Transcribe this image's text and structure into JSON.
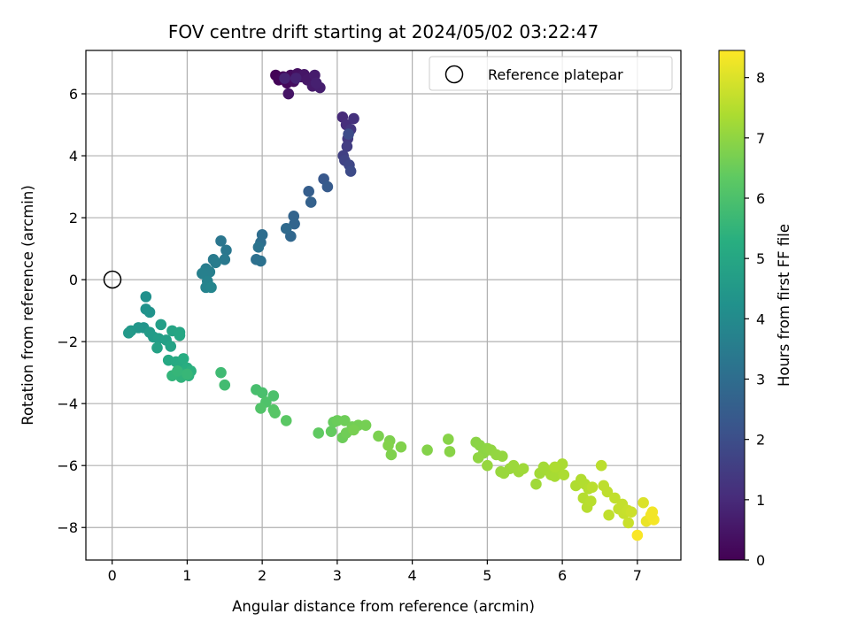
{
  "chart_data": {
    "type": "scatter",
    "title": "FOV centre drift starting at 2024/05/02 03:22:47",
    "xlabel": "Angular distance from reference (arcmin)",
    "ylabel": "Rotation from reference (arcmin)",
    "xlim": [
      -0.35,
      7.58
    ],
    "ylim": [
      -9.05,
      7.4
    ],
    "x_ticks": [
      0,
      1,
      2,
      3,
      4,
      5,
      6,
      7
    ],
    "y_ticks": [
      -8,
      -6,
      -4,
      -2,
      0,
      2,
      4,
      6
    ],
    "grid": true,
    "legend": {
      "placement": "upper-right",
      "entries": [
        {
          "label": "Reference platepar",
          "marker": "open-circle"
        }
      ]
    },
    "colorbar": {
      "label": "Hours from first FF file",
      "colormap": "viridis",
      "range": [
        0,
        8.45
      ],
      "ticks": [
        0,
        1,
        2,
        3,
        4,
        5,
        6,
        7,
        8
      ]
    },
    "reference_point": {
      "x": 0,
      "y": 0
    },
    "series": [
      {
        "marker": "filled-circle",
        "color_by": "hours",
        "points": [
          [
            2.18,
            6.6,
            0.05
          ],
          [
            2.22,
            6.45,
            0.1
          ],
          [
            2.28,
            6.55,
            0.15
          ],
          [
            2.33,
            6.35,
            0.2
          ],
          [
            2.38,
            6.6,
            0.25
          ],
          [
            2.42,
            6.4,
            0.3
          ],
          [
            2.47,
            6.65,
            0.35
          ],
          [
            2.52,
            6.55,
            0.4
          ],
          [
            2.35,
            6.0,
            0.45
          ],
          [
            2.56,
            6.62,
            0.5
          ],
          [
            2.6,
            6.45,
            0.55
          ],
          [
            2.67,
            6.25,
            0.6
          ],
          [
            2.7,
            6.6,
            0.65
          ],
          [
            2.77,
            6.2,
            0.7
          ],
          [
            2.72,
            6.35,
            0.75
          ],
          [
            2.45,
            6.5,
            0.8
          ],
          [
            2.3,
            6.5,
            0.85
          ],
          [
            3.07,
            5.25,
            1.0
          ],
          [
            3.12,
            5.0,
            1.1
          ],
          [
            3.22,
            5.2,
            1.2
          ],
          [
            3.18,
            4.85,
            1.3
          ],
          [
            3.14,
            4.55,
            1.4
          ],
          [
            3.13,
            4.3,
            1.5
          ],
          [
            3.08,
            4.0,
            1.6
          ],
          [
            3.1,
            3.85,
            1.7
          ],
          [
            3.16,
            3.7,
            1.8
          ],
          [
            3.18,
            3.5,
            1.9
          ],
          [
            3.15,
            4.7,
            1.95
          ],
          [
            2.82,
            3.25,
            2.3
          ],
          [
            2.87,
            3.0,
            2.4
          ],
          [
            2.62,
            2.85,
            2.5
          ],
          [
            2.65,
            2.5,
            2.6
          ],
          [
            2.42,
            2.05,
            2.7
          ],
          [
            2.43,
            1.8,
            2.75
          ],
          [
            2.38,
            1.4,
            2.8
          ],
          [
            2.32,
            1.65,
            2.9
          ],
          [
            2.0,
            1.45,
            3.0
          ],
          [
            1.98,
            1.2,
            3.05
          ],
          [
            1.92,
            0.65,
            3.1
          ],
          [
            1.98,
            0.6,
            3.15
          ],
          [
            1.95,
            1.05,
            3.2
          ],
          [
            1.45,
            1.25,
            3.3
          ],
          [
            1.52,
            0.95,
            3.35
          ],
          [
            1.5,
            0.65,
            3.4
          ],
          [
            1.35,
            0.65,
            3.45
          ],
          [
            1.38,
            0.55,
            3.5
          ],
          [
            1.25,
            0.35,
            3.55
          ],
          [
            1.3,
            0.25,
            3.6
          ],
          [
            1.2,
            0.2,
            3.65
          ],
          [
            1.27,
            -0.05,
            3.7
          ],
          [
            1.25,
            -0.25,
            3.75
          ],
          [
            1.32,
            -0.25,
            3.8
          ],
          [
            0.45,
            -0.55,
            4.2
          ],
          [
            0.45,
            -0.95,
            4.25
          ],
          [
            0.5,
            -1.05,
            4.3
          ],
          [
            0.42,
            -1.55,
            4.35
          ],
          [
            0.35,
            -1.55,
            4.4
          ],
          [
            0.25,
            -1.65,
            4.45
          ],
          [
            0.22,
            -1.72,
            4.5
          ],
          [
            0.5,
            -1.7,
            4.55
          ],
          [
            0.55,
            -1.85,
            4.6
          ],
          [
            0.62,
            -1.9,
            4.65
          ],
          [
            0.65,
            -1.45,
            4.7
          ],
          [
            0.72,
            -1.95,
            4.75
          ],
          [
            0.6,
            -2.2,
            4.8
          ],
          [
            0.78,
            -2.15,
            4.85
          ],
          [
            0.8,
            -1.65,
            4.9
          ],
          [
            0.9,
            -1.7,
            4.95
          ],
          [
            0.9,
            -1.8,
            5.0
          ],
          [
            0.75,
            -2.6,
            5.05
          ],
          [
            0.85,
            -2.65,
            5.1
          ],
          [
            0.9,
            -2.75,
            5.15
          ],
          [
            0.95,
            -2.55,
            5.2
          ],
          [
            1.0,
            -2.85,
            5.25
          ],
          [
            0.95,
            -3.0,
            5.3
          ],
          [
            1.05,
            -2.95,
            5.35
          ],
          [
            1.02,
            -3.1,
            5.4
          ],
          [
            0.92,
            -3.15,
            5.45
          ],
          [
            0.8,
            -3.1,
            5.5
          ],
          [
            0.87,
            -2.95,
            5.55
          ],
          [
            1.0,
            -3.05,
            5.6
          ],
          [
            1.45,
            -3.0,
            5.75
          ],
          [
            1.5,
            -3.4,
            5.8
          ],
          [
            1.92,
            -3.55,
            5.9
          ],
          [
            2.0,
            -3.65,
            5.95
          ],
          [
            2.15,
            -3.75,
            6.0
          ],
          [
            2.05,
            -3.95,
            6.05
          ],
          [
            1.98,
            -4.15,
            6.1
          ],
          [
            2.15,
            -4.2,
            6.15
          ],
          [
            2.17,
            -4.3,
            6.2
          ],
          [
            2.32,
            -4.55,
            6.25
          ],
          [
            2.75,
            -4.95,
            6.35
          ],
          [
            2.92,
            -4.9,
            6.4
          ],
          [
            2.95,
            -4.6,
            6.45
          ],
          [
            3.0,
            -4.55,
            6.5
          ],
          [
            3.07,
            -5.1,
            6.52
          ],
          [
            3.1,
            -4.55,
            6.55
          ],
          [
            3.12,
            -4.95,
            6.58
          ],
          [
            3.2,
            -4.75,
            6.6
          ],
          [
            3.28,
            -4.7,
            6.63
          ],
          [
            3.38,
            -4.7,
            6.65
          ],
          [
            3.22,
            -4.85,
            6.68
          ],
          [
            3.55,
            -5.05,
            6.72
          ],
          [
            3.7,
            -5.2,
            6.75
          ],
          [
            3.72,
            -5.65,
            6.78
          ],
          [
            3.85,
            -5.4,
            6.8
          ],
          [
            3.68,
            -5.35,
            6.82
          ],
          [
            4.2,
            -5.5,
            6.85
          ],
          [
            4.48,
            -5.15,
            6.88
          ],
          [
            4.5,
            -5.55,
            6.9
          ],
          [
            4.85,
            -5.25,
            6.92
          ],
          [
            4.9,
            -5.35,
            6.94
          ],
          [
            4.95,
            -5.6,
            6.96
          ],
          [
            5.0,
            -5.45,
            6.98
          ],
          [
            4.88,
            -5.75,
            7.0
          ],
          [
            5.05,
            -5.5,
            7.02
          ],
          [
            5.12,
            -5.65,
            7.04
          ],
          [
            5.2,
            -5.7,
            7.06
          ],
          [
            5.0,
            -6.0,
            7.08
          ],
          [
            5.18,
            -6.2,
            7.1
          ],
          [
            5.22,
            -6.25,
            7.12
          ],
          [
            5.3,
            -6.1,
            7.14
          ],
          [
            5.35,
            -6.0,
            7.16
          ],
          [
            5.42,
            -6.2,
            7.18
          ],
          [
            5.48,
            -6.1,
            7.2
          ],
          [
            5.65,
            -6.6,
            7.22
          ],
          [
            5.7,
            -6.25,
            7.24
          ],
          [
            5.75,
            -6.05,
            7.26
          ],
          [
            5.8,
            -6.15,
            7.28
          ],
          [
            5.85,
            -6.3,
            7.3
          ],
          [
            5.9,
            -6.35,
            7.32
          ],
          [
            5.95,
            -6.1,
            7.34
          ],
          [
            6.0,
            -5.95,
            7.36
          ],
          [
            6.02,
            -6.3,
            7.38
          ],
          [
            5.9,
            -6.05,
            7.4
          ],
          [
            6.18,
            -6.65,
            7.42
          ],
          [
            6.25,
            -6.45,
            7.44
          ],
          [
            6.3,
            -6.6,
            7.46
          ],
          [
            6.35,
            -6.75,
            7.48
          ],
          [
            6.28,
            -7.05,
            7.5
          ],
          [
            6.33,
            -7.35,
            7.52
          ],
          [
            6.38,
            -7.15,
            7.54
          ],
          [
            6.4,
            -6.7,
            7.56
          ],
          [
            6.52,
            -6.0,
            7.58
          ],
          [
            6.55,
            -6.65,
            7.6
          ],
          [
            6.6,
            -6.85,
            7.62
          ],
          [
            6.62,
            -7.6,
            7.64
          ],
          [
            6.7,
            -7.05,
            7.66
          ],
          [
            6.75,
            -7.4,
            7.68
          ],
          [
            6.8,
            -7.25,
            7.7
          ],
          [
            6.82,
            -7.55,
            7.72
          ],
          [
            6.87,
            -7.45,
            7.74
          ],
          [
            6.88,
            -7.85,
            7.76
          ],
          [
            6.92,
            -7.5,
            7.8
          ],
          [
            7.0,
            -8.25,
            8.4
          ],
          [
            7.08,
            -7.2,
            8.0
          ],
          [
            7.12,
            -7.8,
            8.2
          ],
          [
            7.2,
            -7.5,
            8.3
          ],
          [
            7.22,
            -7.75,
            8.35
          ],
          [
            7.18,
            -7.6,
            8.3
          ]
        ]
      }
    ]
  }
}
